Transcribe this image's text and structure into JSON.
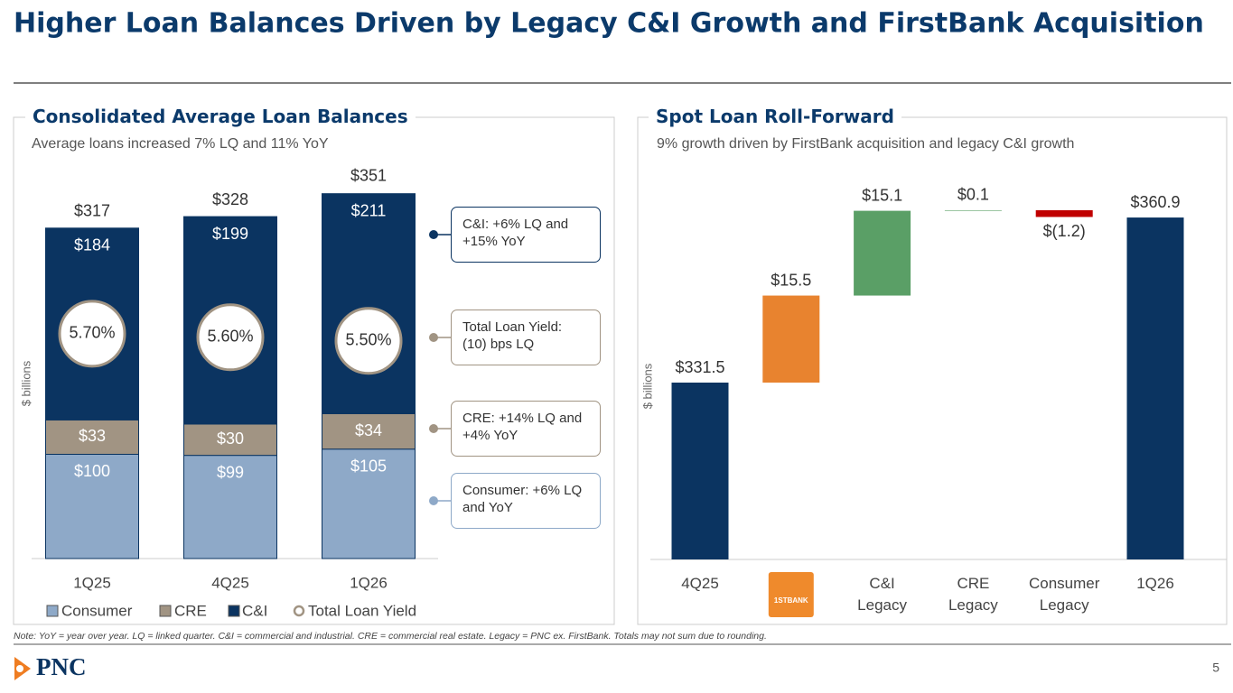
{
  "title": "Higher Loan Balances Driven by Legacy C&I Growth and FirstBank Acquisition",
  "note": "Note: YoY = year over year. LQ = linked quarter. C&I = commercial and industrial. CRE = commercial real estate. Legacy = PNC ex. FirstBank. Totals may not sum due to rounding.",
  "logo": "PNC",
  "page_number": "5",
  "chart_data": [
    {
      "type": "stacked_bar",
      "title": "Consolidated Average Loan Balances",
      "subtitle": "Average loans increased 7% LQ and 11% YoY",
      "y_label": "$ billions",
      "categories": [
        "1Q25",
        "4Q25",
        "1Q26"
      ],
      "series": [
        {
          "name": "Consumer",
          "color": "#8ea9c8",
          "values": [
            100,
            99,
            105
          ],
          "value_labels": [
            "$100",
            "$99",
            "$105"
          ]
        },
        {
          "name": "CRE",
          "color": "#a19483",
          "values": [
            33,
            30,
            34
          ],
          "value_labels": [
            "$33",
            "$30",
            "$34"
          ]
        },
        {
          "name": "C&I",
          "color": "#0b3461",
          "values": [
            184,
            199,
            211
          ],
          "value_labels": [
            "$184",
            "$199",
            "$211"
          ]
        }
      ],
      "totals": [
        317,
        328,
        351
      ],
      "total_labels": [
        "$317",
        "$328",
        "$351"
      ],
      "yield_series": {
        "name": "Total Loan Yield",
        "color": "#a19483",
        "values": [
          5.7,
          5.6,
          5.5
        ],
        "value_labels": [
          "5.70%",
          "5.60%",
          "5.50%"
        ]
      },
      "ylim": [
        0,
        380
      ],
      "y2lim": [
        -0.6,
        10.5
      ],
      "callouts": [
        {
          "text": "C&I: +6% LQ and +15% YoY",
          "color": "#0b3461"
        },
        {
          "text": "Total Loan Yield: (10) bps LQ",
          "color": "#a19483"
        },
        {
          "text": "CRE: +14% LQ and +4% YoY",
          "color": "#a19483"
        },
        {
          "text": "Consumer: +6% LQ and YoY",
          "color": "#8ea9c8"
        }
      ]
    },
    {
      "type": "waterfall",
      "title": "Spot Loan Roll-Forward",
      "subtitle": "9% growth driven by FirstBank acquisition and legacy C&I growth",
      "y_label": "$ billions",
      "categories": [
        "4Q25",
        null,
        "C&I Legacy",
        "CRE Legacy",
        "Consumer Legacy",
        "1Q26"
      ],
      "logo_text": "1STBANK",
      "values": [
        331.5,
        15.5,
        15.1,
        0.1,
        -1.2,
        360.9
      ],
      "value_labels": [
        "$331.5",
        "$15.5",
        "$15.1",
        "$0.1",
        "$(1.2)",
        "$360.9"
      ],
      "bar_kinds": [
        "total",
        "change",
        "change",
        "change",
        "change",
        "total"
      ],
      "colors": [
        "#0b3461",
        "#e8832f",
        "#5a9f66",
        "#5a9f66",
        "#c00000",
        "#0b3461"
      ],
      "ylim": [
        300,
        372
      ]
    }
  ]
}
